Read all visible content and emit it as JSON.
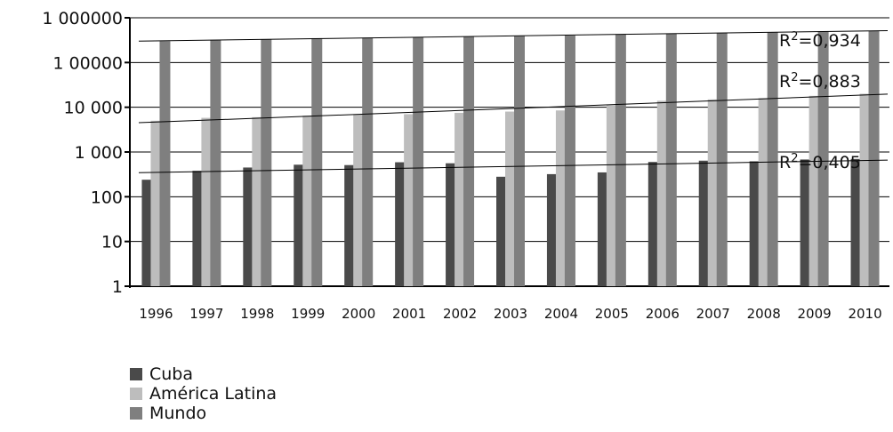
{
  "colors": {
    "cuba": "#4a4a4a",
    "america_latina": "#bdbdbd",
    "mundo": "#7f7f7f"
  },
  "chart_data": {
    "type": "bar",
    "log_scale": true,
    "ylim": [
      1,
      1000000
    ],
    "y_ticks": [
      1,
      10,
      100,
      1000,
      10000,
      100000,
      1000000
    ],
    "y_tick_labels": [
      "1",
      "10",
      "100",
      "1 000",
      "10 000",
      "1 00000",
      "1 000000"
    ],
    "grid": true,
    "legend_position": "bottom-left",
    "categories": [
      "1996",
      "1997",
      "1998",
      "1999",
      "2000",
      "2001",
      "2002",
      "2003",
      "2004",
      "2005",
      "2006",
      "2007",
      "2008",
      "2009",
      "2010"
    ],
    "series": [
      {
        "name": "Cuba",
        "values": [
          240,
          380,
          450,
          520,
          510,
          590,
          560,
          280,
          320,
          350,
          600,
          640,
          620,
          680,
          700
        ]
      },
      {
        "name": "América Latina",
        "values": [
          5000,
          5800,
          6000,
          6500,
          7000,
          7000,
          7500,
          8000,
          8500,
          11000,
          14000,
          15000,
          16000,
          18000,
          20000
        ]
      },
      {
        "name": "Mundo",
        "values": [
          300000,
          320000,
          330000,
          350000,
          360000,
          370000,
          380000,
          390000,
          400000,
          420000,
          440000,
          460000,
          480000,
          500000,
          510000
        ]
      }
    ],
    "annotations": [
      "R2=0,934",
      "R2=0,883",
      "R2=0,405"
    ]
  }
}
